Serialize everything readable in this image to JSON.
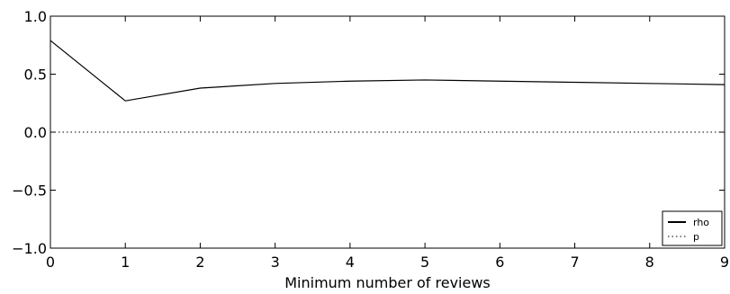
{
  "chart_data": {
    "type": "line",
    "title": "",
    "xlabel": "Minimum number of reviews",
    "ylabel": "",
    "xlim": [
      0,
      9
    ],
    "ylim": [
      -1.0,
      1.0
    ],
    "x_ticks": [
      0,
      1,
      2,
      3,
      4,
      5,
      6,
      7,
      8,
      9
    ],
    "x_tick_labels": [
      "0",
      "1",
      "2",
      "3",
      "4",
      "5",
      "6",
      "7",
      "8",
      "9"
    ],
    "y_ticks": [
      -1.0,
      -0.5,
      0.0,
      0.5,
      1.0
    ],
    "y_tick_labels": [
      "−1.0",
      "−0.5",
      "0.0",
      "0.5",
      "1.0"
    ],
    "grid": false,
    "legend_position": "bottom-right",
    "series": [
      {
        "name": "rho",
        "style": "solid",
        "color": "#000000",
        "x": [
          0,
          1,
          2,
          3,
          4,
          5,
          6,
          7,
          8,
          9
        ],
        "values": [
          0.79,
          0.27,
          0.38,
          0.42,
          0.44,
          0.45,
          0.44,
          0.43,
          0.42,
          0.41
        ]
      },
      {
        "name": "p",
        "style": "dotted",
        "color": "#000000",
        "x": [
          0,
          1,
          2,
          3,
          4,
          5,
          6,
          7,
          8,
          9
        ],
        "values": [
          0.0,
          0.0,
          0.0,
          0.0,
          0.0,
          0.0,
          0.0,
          0.0,
          0.0,
          0.0
        ]
      }
    ]
  }
}
